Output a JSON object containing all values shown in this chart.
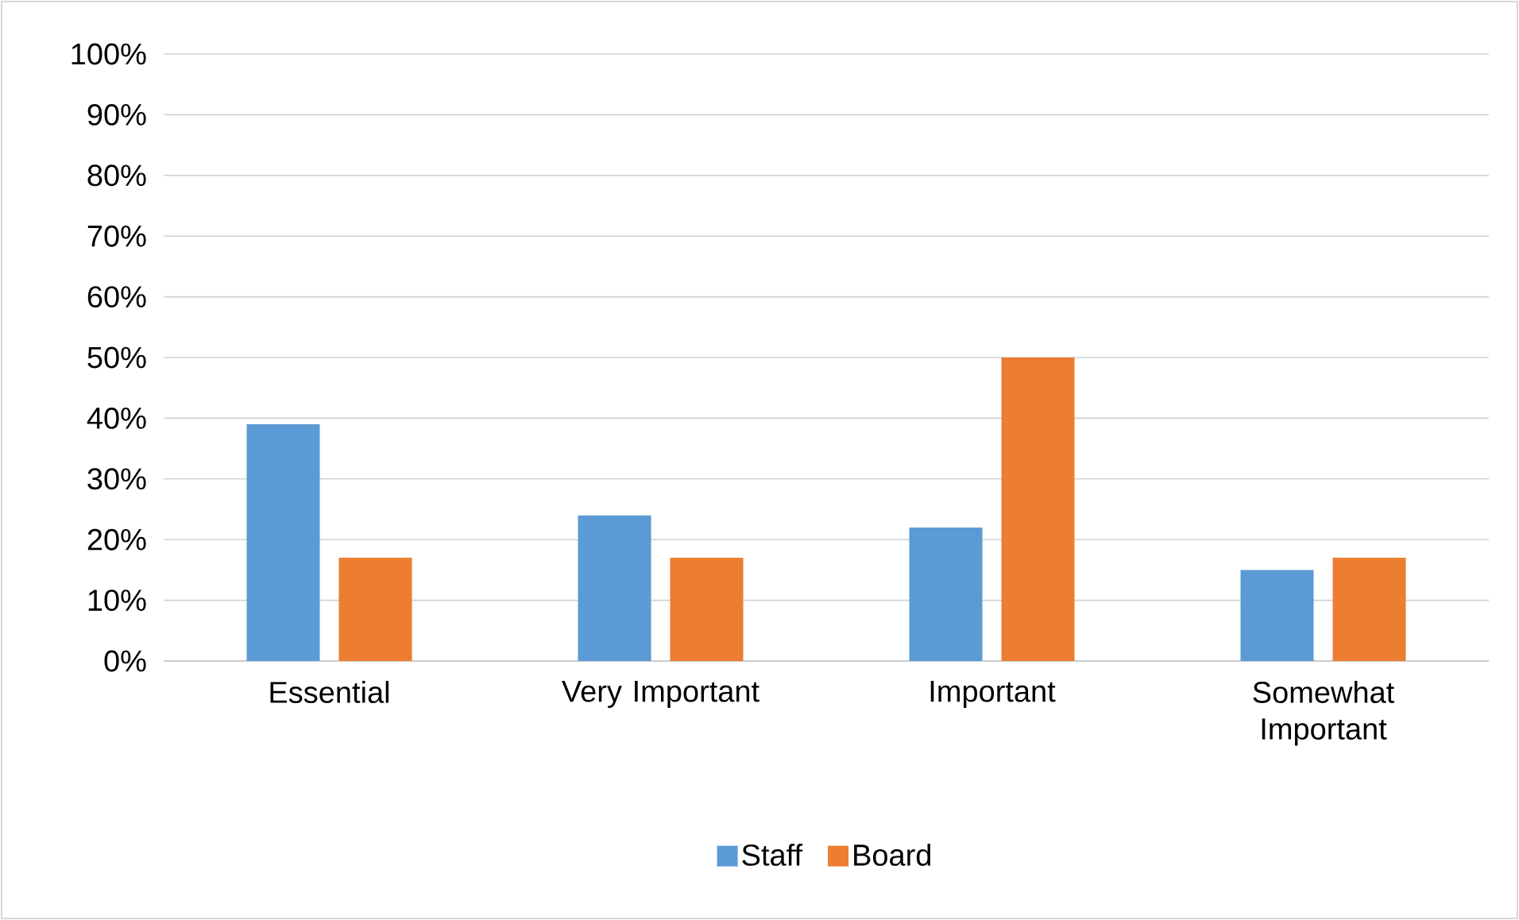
{
  "chart_data": {
    "type": "bar",
    "categories": [
      "Essential",
      "Very Important",
      "Important",
      "Somewhat Important"
    ],
    "series": [
      {
        "name": "Staff",
        "color": "#5b9bd5",
        "values": [
          39,
          24,
          22,
          15
        ]
      },
      {
        "name": "Board",
        "color": "#ed7d31",
        "values": [
          17,
          17,
          50,
          17
        ]
      }
    ],
    "ylim": [
      0,
      100
    ],
    "yticks": [
      {
        "value": 0,
        "label": "0%"
      },
      {
        "value": 10,
        "label": "10%"
      },
      {
        "value": 20,
        "label": "20%"
      },
      {
        "value": 30,
        "label": "30%"
      },
      {
        "value": 40,
        "label": "40%"
      },
      {
        "value": 50,
        "label": "50%"
      },
      {
        "value": 60,
        "label": "60%"
      },
      {
        "value": 70,
        "label": "70%"
      },
      {
        "value": 80,
        "label": "80%"
      },
      {
        "value": 90,
        "label": "90%"
      },
      {
        "value": 100,
        "label": "100%"
      }
    ],
    "grid": "y",
    "legend": "bottom"
  }
}
